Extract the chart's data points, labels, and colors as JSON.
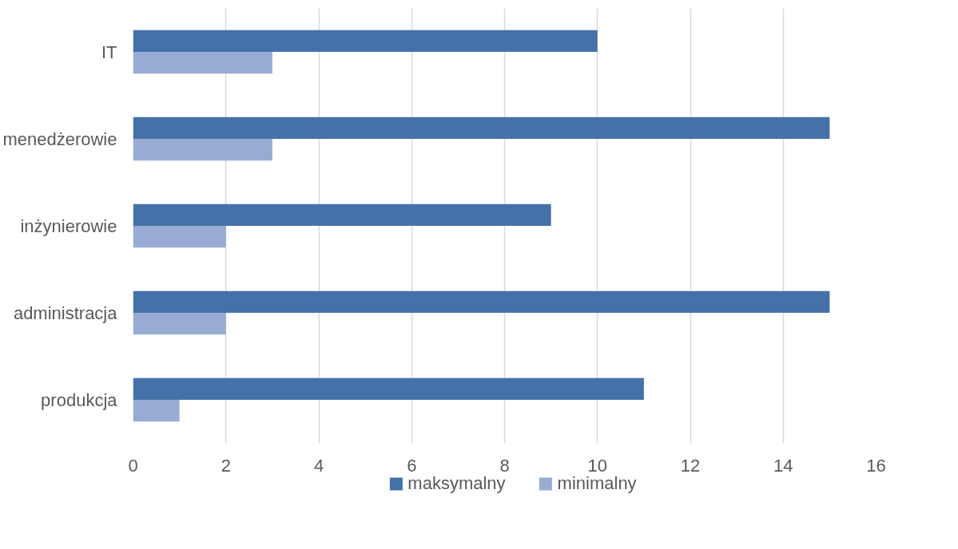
{
  "chart_data": {
    "type": "bar",
    "orientation": "horizontal",
    "categories": [
      "IT",
      "menedżerowie",
      "inżynierowie",
      "administracja",
      "produkcja"
    ],
    "series": [
      {
        "name": "maksymalny",
        "color": "#4472a8",
        "values": [
          10,
          15,
          9,
          15,
          11
        ]
      },
      {
        "name": "minimalny",
        "color": "#97abd3",
        "values": [
          3,
          3,
          2,
          2,
          1
        ]
      }
    ],
    "xlim": [
      0,
      16
    ],
    "xticks": [
      0,
      2,
      4,
      6,
      8,
      10,
      12,
      14,
      16
    ],
    "grid": "x",
    "legend": "bottom"
  }
}
